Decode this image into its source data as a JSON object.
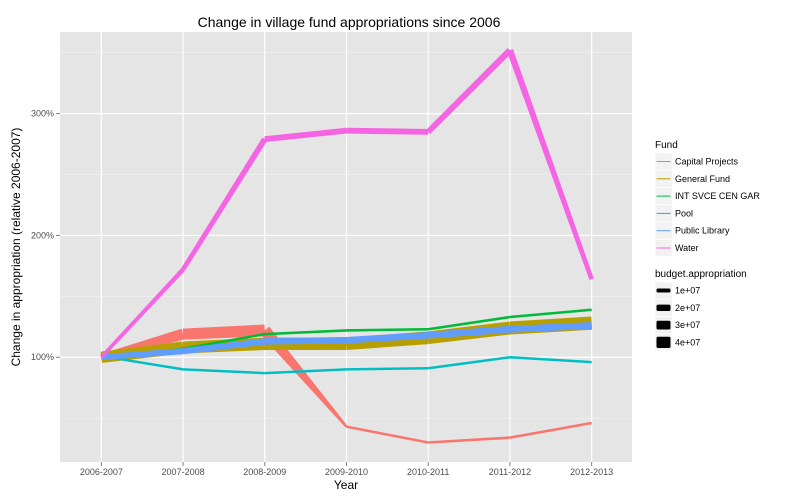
{
  "chart_data": {
    "type": "line",
    "title": "Change in village fund appropriations since 2006",
    "xlabel": "Year",
    "ylabel": "Change in appropriation (relative 2006-2007)",
    "categories": [
      "2006-2007",
      "2007-2008",
      "2008-2009",
      "2009-2010",
      "2010-2011",
      "2011-2012",
      "2012-2013"
    ],
    "y_ticks": [
      {
        "value": 100,
        "label": "100%"
      },
      {
        "value": 200,
        "label": "200%"
      },
      {
        "value": 300,
        "label": "300%"
      }
    ],
    "ylim": [
      14,
      367
    ],
    "grid": true,
    "background": "#e5e5e5",
    "legend_position": "right",
    "color_legend": {
      "title": "Fund",
      "entries": [
        "Capital Projects",
        "General Fund",
        "INT SVCE CEN GAR",
        "Pool",
        "Public Library",
        "Water"
      ]
    },
    "size_legend": {
      "title": "budget.appropriation",
      "entries": [
        {
          "label": "1e+07",
          "value": 10000000
        },
        {
          "label": "2e+07",
          "value": 20000000
        },
        {
          "label": "3e+07",
          "value": 30000000
        },
        {
          "label": "4e+07",
          "value": 40000000
        }
      ]
    },
    "series": [
      {
        "name": "Capital Projects",
        "color": "#f8766d",
        "values": [
          100,
          119,
          122,
          43,
          30,
          34,
          46
        ],
        "appropriation": [
          10000000,
          29000000,
          33000000,
          1500000,
          1500000,
          1500000,
          1500000
        ]
      },
      {
        "name": "General Fund",
        "color": "#b79f00",
        "values": [
          100,
          108,
          111,
          111,
          116,
          124,
          128
        ],
        "appropriation": [
          30000000,
          34000000,
          36000000,
          36000000,
          38000000,
          40000000,
          42000000
        ]
      },
      {
        "name": "INT SVCE CEN GAR",
        "color": "#00ba38",
        "values": [
          99,
          107,
          119,
          122,
          123,
          133,
          139
        ],
        "appropriation": [
          1500000,
          1500000,
          1500000,
          1500000,
          1500000,
          1500000,
          1500000
        ]
      },
      {
        "name": "Pool",
        "color": "#00bfc4",
        "values": [
          101,
          90,
          87,
          90,
          91,
          100,
          96
        ],
        "appropriation": [
          1500000,
          1500000,
          1500000,
          1500000,
          1500000,
          1500000,
          1500000
        ]
      },
      {
        "name": "Public Library",
        "color": "#619cff",
        "values": [
          100,
          105,
          113,
          114,
          118,
          123,
          126
        ],
        "appropriation": [
          8000000,
          9000000,
          10000000,
          10000000,
          10500000,
          11000000,
          11500000
        ]
      },
      {
        "name": "Water",
        "color": "#f564e3",
        "values": [
          100,
          172,
          279,
          286,
          285,
          352,
          164
        ],
        "appropriation": [
          3000000,
          5000000,
          8000000,
          8000000,
          8000000,
          10000000,
          5000000
        ]
      }
    ]
  }
}
